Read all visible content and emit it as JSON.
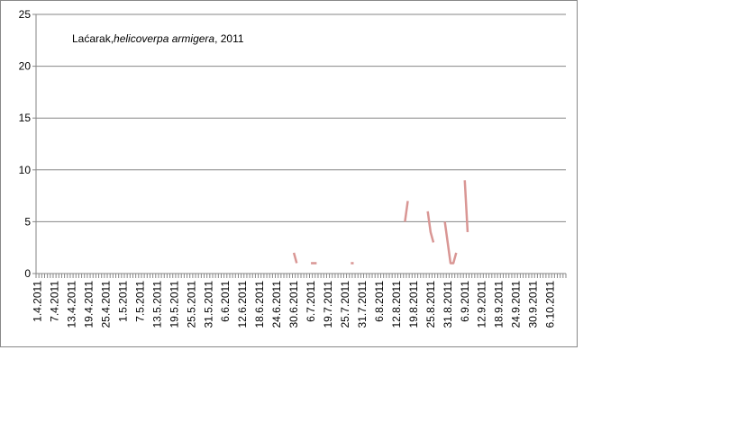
{
  "chart_data": {
    "type": "line",
    "title": [
      "Laćarak,",
      "helicoverpa armigera",
      ", 2011"
    ],
    "categories": [
      "1.4.2011",
      null,
      null,
      null,
      null,
      null,
      "7.4.2011",
      null,
      null,
      null,
      null,
      null,
      "13.4.2011",
      null,
      null,
      null,
      null,
      null,
      "19.4.2011",
      null,
      null,
      null,
      null,
      null,
      "25.4.2011",
      null,
      null,
      null,
      null,
      null,
      "1.5.2011",
      null,
      null,
      null,
      null,
      null,
      "7.5.2011",
      null,
      null,
      null,
      null,
      null,
      "13.5.2011",
      null,
      null,
      null,
      null,
      null,
      "19.5.2011",
      null,
      null,
      null,
      null,
      null,
      "25.5.2011",
      null,
      null,
      null,
      null,
      null,
      "31.5.2011",
      null,
      null,
      null,
      null,
      null,
      "6.6.2011",
      null,
      null,
      null,
      null,
      null,
      "12.6.2011",
      null,
      null,
      null,
      null,
      null,
      "18.6.2011",
      null,
      null,
      null,
      null,
      null,
      "24.6.2011",
      null,
      null,
      null,
      null,
      null,
      "30.6.2011",
      null,
      null,
      null,
      null,
      null,
      "6.7.2011",
      null,
      null,
      null,
      null,
      null,
      "19.7.2011",
      null,
      null,
      null,
      null,
      null,
      "25.7.2011",
      null,
      null,
      null,
      null,
      null,
      "31.7.2011",
      null,
      null,
      null,
      null,
      null,
      "6.8.2011",
      null,
      null,
      null,
      null,
      null,
      "12.8.2011",
      null,
      null,
      null,
      null,
      null,
      "19.8.2011",
      null,
      null,
      null,
      null,
      null,
      "25.8.2011",
      null,
      null,
      null,
      null,
      null,
      "31.8.2011",
      null,
      null,
      null,
      null,
      null,
      "6.9.2011",
      null,
      null,
      null,
      null,
      null,
      "12.9.2011",
      null,
      null,
      null,
      null,
      null,
      "18.9.2011",
      null,
      null,
      null,
      null,
      null,
      "24.9.2011",
      null,
      null,
      null,
      null,
      null,
      "30.9.2011",
      null,
      null,
      null,
      null,
      null,
      "6.10.2011",
      null,
      null,
      null,
      null,
      null
    ],
    "series": [
      {
        "color": "#d99694",
        "values": [
          null,
          null,
          null,
          null,
          null,
          null,
          null,
          null,
          null,
          null,
          null,
          null,
          null,
          null,
          null,
          null,
          null,
          null,
          null,
          null,
          null,
          null,
          null,
          null,
          null,
          null,
          null,
          null,
          null,
          null,
          null,
          null,
          null,
          null,
          null,
          null,
          null,
          null,
          null,
          null,
          null,
          null,
          null,
          null,
          null,
          null,
          null,
          null,
          null,
          null,
          null,
          null,
          null,
          null,
          null,
          null,
          null,
          null,
          null,
          null,
          null,
          null,
          null,
          null,
          null,
          null,
          null,
          null,
          null,
          null,
          null,
          null,
          null,
          null,
          null,
          null,
          null,
          null,
          null,
          null,
          null,
          null,
          null,
          null,
          null,
          null,
          null,
          null,
          null,
          null,
          2,
          1,
          null,
          null,
          null,
          null,
          1,
          1,
          1,
          null,
          null,
          null,
          null,
          null,
          null,
          null,
          null,
          null,
          null,
          null,
          1,
          1,
          null,
          null,
          null,
          null,
          null,
          null,
          null,
          null,
          null,
          null,
          null,
          null,
          null,
          null,
          null,
          null,
          null,
          5,
          7,
          null,
          null,
          null,
          null,
          null,
          null,
          6,
          4,
          3,
          null,
          null,
          null,
          5,
          3,
          1,
          1,
          2,
          null,
          null,
          9,
          4,
          null,
          null,
          null,
          null,
          null,
          null,
          null,
          null,
          null,
          null,
          null,
          null,
          null,
          null,
          null,
          null,
          null,
          null,
          null,
          null,
          null,
          null,
          null,
          null,
          null,
          null,
          null,
          null,
          null,
          null,
          null,
          null,
          null,
          null
        ]
      }
    ],
    "ylim": [
      0,
      25
    ],
    "yticks": [
      0,
      5,
      10,
      15,
      20,
      25
    ],
    "grid": true
  }
}
